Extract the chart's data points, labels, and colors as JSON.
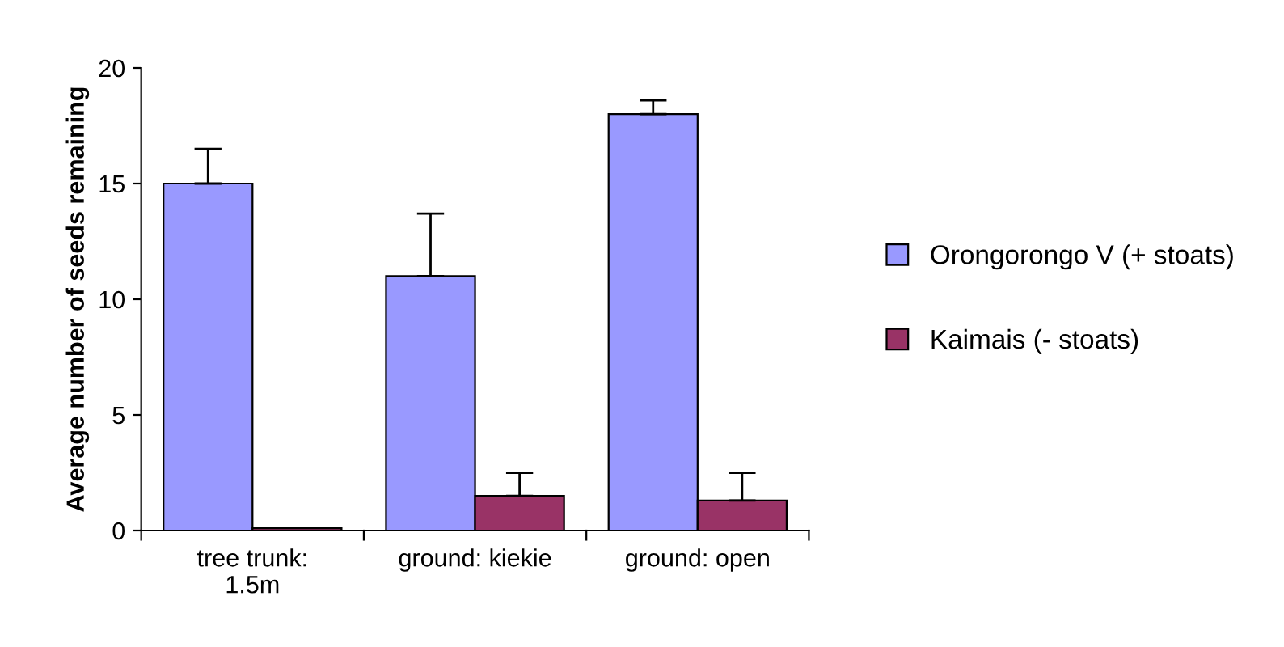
{
  "chart_data": {
    "type": "bar",
    "ylabel": "Average number of seeds remaining",
    "categories": [
      "tree trunk:\n1.5m",
      "ground: kiekie",
      "ground: open"
    ],
    "series": [
      {
        "name": "Orongorongo V (+ stoats)",
        "color": "#9999ff",
        "values": [
          15,
          11,
          18
        ],
        "errors": [
          [
            15,
            16.5
          ],
          [
            11,
            13.7
          ],
          [
            18,
            18.6
          ]
        ]
      },
      {
        "name": "Kaimais (- stoats)",
        "color": "#993366",
        "values": [
          0.1,
          1.5,
          1.3
        ],
        "errors": [
          null,
          [
            1.5,
            2.5
          ],
          [
            1.3,
            2.5
          ]
        ]
      }
    ],
    "ylim": [
      0,
      20
    ],
    "yticks": [
      0,
      5,
      10,
      15,
      20
    ],
    "grid": false,
    "legend": "right"
  }
}
